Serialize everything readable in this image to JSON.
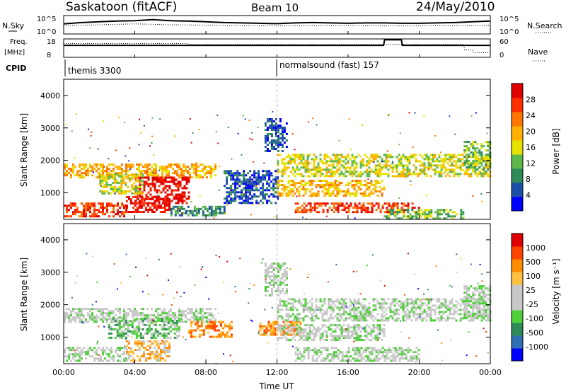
{
  "header": {
    "station": "Saskatoon (fitACF)",
    "beam": "Beam 10",
    "date": "24/May/2010"
  },
  "top_labels": {
    "nsky": "N.Sky",
    "freq": "Freq.",
    "freq_unit": "[MHz]",
    "cpid": "CPID",
    "nsearch": "N.Search",
    "nave": "Nave",
    "nsky_ticks": [
      "10^5",
      "10^0"
    ],
    "freq_ticks": [
      "18",
      "8"
    ],
    "nsearch_ticks": [
      "10^5",
      "10^0"
    ],
    "nave_ticks": [
      "60",
      "0"
    ]
  },
  "cpid_modes": [
    {
      "label": "themis 3300",
      "start_hour": 0
    },
    {
      "label": "normalsound (fast) 157",
      "start_hour": 12
    }
  ],
  "colors": {
    "power_scale": [
      "#0000ff",
      "#1e4fa8",
      "#2e8b57",
      "#5fb84a",
      "#e5e200",
      "#ffb000",
      "#ff7700",
      "#ff3000",
      "#e00000"
    ],
    "velocity_scale": [
      "#0000ff",
      "#2f6fb3",
      "#2e8b57",
      "#4fcf3a",
      "#c8c8c8",
      "#c8c8c8",
      "#ffc040",
      "#ff8c00",
      "#ff4500",
      "#e00000"
    ],
    "ground_scatter": "#b8b8b8"
  },
  "chart_data": [
    {
      "type": "line",
      "name": "noise-panel",
      "ylabel_left": "N.Sky",
      "ylabel_right": "N.Search",
      "xlim": [
        0,
        24
      ],
      "series": [
        {
          "name": "N.Sky",
          "x": [
            0,
            1,
            2,
            3,
            4,
            5,
            6,
            7,
            8,
            9,
            10,
            11,
            12,
            13,
            14,
            15,
            16,
            17,
            18,
            19,
            20,
            21,
            22,
            23,
            24
          ],
          "y": [
            0.55,
            0.62,
            0.66,
            0.7,
            0.72,
            0.78,
            0.72,
            0.7,
            0.66,
            0.62,
            0.6,
            0.58,
            0.56,
            0.6,
            0.62,
            0.6,
            0.58,
            0.6,
            0.6,
            0.58,
            0.58,
            0.6,
            0.62,
            0.66,
            0.7
          ]
        },
        {
          "name": "N.Search",
          "x": [
            0,
            2,
            4,
            6,
            8,
            10,
            12,
            14,
            16,
            18,
            20,
            22,
            24
          ],
          "y": [
            0.45,
            0.5,
            0.55,
            0.5,
            0.48,
            0.45,
            0.44,
            0.45,
            0.45,
            0.44,
            0.44,
            0.45,
            0.46
          ]
        }
      ]
    },
    {
      "type": "line",
      "name": "frequency-panel",
      "ylabel_left": "Freq. [MHz]",
      "ylabel_right": "Nave",
      "xlim": [
        0,
        24
      ],
      "series": [
        {
          "name": "Freq.",
          "x": [
            0,
            0.05,
            18,
            18.05,
            19,
            19.05,
            24
          ],
          "y": [
            0.65,
            0.65,
            0.65,
            0.95,
            0.95,
            0.65,
            0.65
          ]
        },
        {
          "name": "Nave",
          "x": [
            0,
            7,
            7.05,
            22.5,
            22.55,
            23,
            23.05,
            24
          ],
          "y": [
            0.75,
            0.75,
            0.7,
            0.7,
            0.4,
            0.4,
            0.25,
            0.25
          ]
        }
      ]
    },
    {
      "type": "heatmap",
      "name": "power-panel",
      "ylabel": "Slant Range [km]",
      "colorbar_label": "Power [dB]",
      "colorbar_ticks": [
        "28",
        "24",
        "20",
        "16",
        "12",
        "8",
        "4"
      ],
      "xlim": [
        0,
        24
      ],
      "ylim": [
        180,
        4500
      ],
      "yticks": [
        "4000",
        "3000",
        "2000",
        "1000"
      ],
      "ytick_values": [
        4000,
        3000,
        2000,
        1000
      ],
      "bands": [
        {
          "x0": 0,
          "x1": 8.5,
          "y0": 1500,
          "y1": 1900,
          "level": 5
        },
        {
          "x0": 0,
          "x1": 3.5,
          "y0": 300,
          "y1": 700,
          "level": 7
        },
        {
          "x0": 3.5,
          "x1": 6.0,
          "y0": 400,
          "y1": 900,
          "level": 8
        },
        {
          "x0": 4.0,
          "x1": 7.0,
          "y0": 700,
          "y1": 1500,
          "level": 8
        },
        {
          "x0": 2.0,
          "x1": 4.5,
          "y0": 1000,
          "y1": 1600,
          "level": 4
        },
        {
          "x0": 6.0,
          "x1": 9.0,
          "y0": 300,
          "y1": 600,
          "level": 2
        },
        {
          "x0": 9.0,
          "x1": 12.0,
          "y0": 700,
          "y1": 1700,
          "level": 1
        },
        {
          "x0": 12.0,
          "x1": 24,
          "y0": 1500,
          "y1": 2200,
          "level": 4
        },
        {
          "x0": 12.0,
          "x1": 18.0,
          "y0": 900,
          "y1": 1400,
          "level": 5
        },
        {
          "x0": 13.0,
          "x1": 20.0,
          "y0": 400,
          "y1": 700,
          "level": 7
        },
        {
          "x0": 18.0,
          "x1": 22.5,
          "y0": 200,
          "y1": 500,
          "level": 3
        },
        {
          "x0": 11.3,
          "x1": 12.5,
          "y0": 2300,
          "y1": 3300,
          "level": 1
        },
        {
          "x0": 22.5,
          "x1": 24,
          "y0": 1600,
          "y1": 2600,
          "level": 3
        }
      ]
    },
    {
      "type": "heatmap",
      "name": "velocity-panel",
      "xlabel": "Time UT",
      "ylabel": "Slant Range [km]",
      "colorbar_label": "Velocity [m s⁻¹]",
      "colorbar_ticks": [
        "1000",
        "500",
        "100",
        "25",
        "-25",
        "-100",
        "-500",
        "-1000"
      ],
      "xlim": [
        0,
        24
      ],
      "ylim": [
        180,
        4500
      ],
      "xticks": [
        "00:00",
        "04:00",
        "08:00",
        "12:00",
        "16:00",
        "20:00",
        "00:00"
      ],
      "xtick_values": [
        0,
        4,
        8,
        12,
        16,
        20,
        24
      ],
      "yticks": [
        "4000",
        "3000",
        "2000",
        "1000"
      ],
      "ytick_values": [
        4000,
        3000,
        2000,
        1000
      ],
      "bands": [
        {
          "x0": 0,
          "x1": 8.5,
          "y0": 1500,
          "y1": 1900,
          "level": 4
        },
        {
          "x0": 0,
          "x1": 3.5,
          "y0": 300,
          "y1": 700,
          "level": 4
        },
        {
          "x0": 3.5,
          "x1": 6.0,
          "y0": 300,
          "y1": 900,
          "level": 6
        },
        {
          "x0": 2.5,
          "x1": 6.5,
          "y0": 1000,
          "y1": 1600,
          "level": 3
        },
        {
          "x0": 7.0,
          "x1": 9.5,
          "y0": 1000,
          "y1": 1500,
          "level": 7
        },
        {
          "x0": 11.0,
          "x1": 13.3,
          "y0": 1100,
          "y1": 1500,
          "level": 7
        },
        {
          "x0": 12.0,
          "x1": 24,
          "y0": 1500,
          "y1": 2200,
          "level": 4
        },
        {
          "x0": 12.0,
          "x1": 18.0,
          "y0": 900,
          "y1": 1400,
          "level": 4
        },
        {
          "x0": 13.0,
          "x1": 20.0,
          "y0": 300,
          "y1": 700,
          "level": 4
        },
        {
          "x0": 11.3,
          "x1": 12.5,
          "y0": 2300,
          "y1": 3300,
          "level": 4
        },
        {
          "x0": 22.5,
          "x1": 24,
          "y0": 1600,
          "y1": 2600,
          "level": 4
        }
      ]
    }
  ]
}
